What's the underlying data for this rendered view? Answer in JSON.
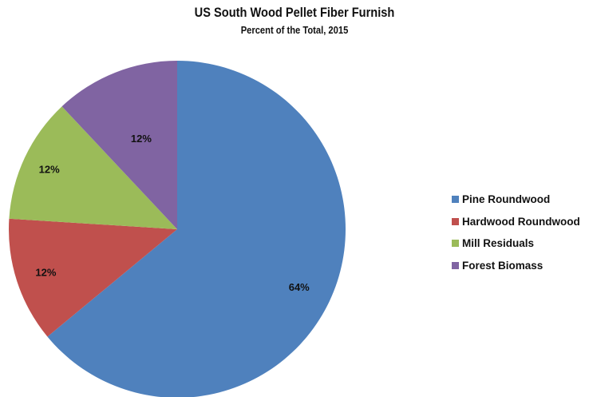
{
  "chart_data": {
    "type": "pie",
    "title": "US South Wood Pellet Fiber Furnish",
    "subtitle": "Percent of the Total, 2015",
    "legend_position": "right",
    "slices": [
      {
        "label": "Pine Roundwood",
        "value": 64,
        "value_label": "64%",
        "color": "#4F81BD"
      },
      {
        "label": "Hardwood Roundwood",
        "value": 12,
        "value_label": "12%",
        "color": "#C0504D"
      },
      {
        "label": "Mill Residuals",
        "value": 12,
        "value_label": "12%",
        "color": "#9BBB59"
      },
      {
        "label": "Forest Biomass",
        "value": 12,
        "value_label": "12%",
        "color": "#8064A2"
      }
    ]
  }
}
